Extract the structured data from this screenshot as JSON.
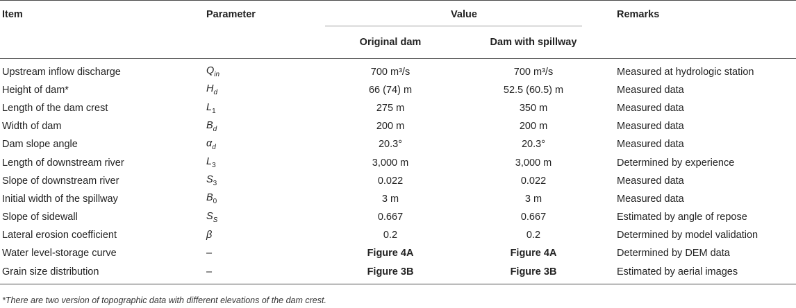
{
  "headers": {
    "item": "Item",
    "parameter": "Parameter",
    "value": "Value",
    "remarks": "Remarks",
    "original_dam": "Original dam",
    "dam_with_spillway": "Dam with spillway"
  },
  "rows": [
    {
      "item": "Upstream inflow discharge",
      "param_main": "Q",
      "param_sub": "in",
      "original": "700 m³/s",
      "spillway": "700 m³/s",
      "remarks": "Measured at hydrologic station"
    },
    {
      "item": "Height of dam*",
      "param_main": "H",
      "param_sub": "d",
      "original": "66 (74) m",
      "spillway": "52.5 (60.5) m",
      "remarks": "Measured data"
    },
    {
      "item": "Length of the dam crest",
      "param_main": "L",
      "param_sub": "1",
      "original": "275 m",
      "spillway": "350 m",
      "remarks": "Measured data"
    },
    {
      "item": "Width of dam",
      "param_main": "B",
      "param_sub": "d",
      "original": "200 m",
      "spillway": "200 m",
      "remarks": "Measured data"
    },
    {
      "item": "Dam slope angle",
      "param_main": "α",
      "param_sub": "d",
      "original": "20.3°",
      "spillway": "20.3°",
      "remarks": "Measured data"
    },
    {
      "item": "Length of downstream river",
      "param_main": "L",
      "param_sub": "3",
      "original": "3,000 m",
      "spillway": "3,000 m",
      "remarks": "Determined by experience"
    },
    {
      "item": "Slope of downstream river",
      "param_main": "S",
      "param_sub": "3",
      "original": "0.022",
      "spillway": "0.022",
      "remarks": "Measured data"
    },
    {
      "item": "Initial width of the spillway",
      "param_main": "B",
      "param_sub": "0",
      "original": "3 m",
      "spillway": "3 m",
      "remarks": "Measured data"
    },
    {
      "item": "Slope of sidewall",
      "param_main": "S",
      "param_sub": "S",
      "original": "0.667",
      "spillway": "0.667",
      "remarks": "Estimated by angle of repose"
    },
    {
      "item": "Lateral erosion coefficient",
      "param_main": "β",
      "param_sub": "",
      "original": "0.2",
      "spillway": "0.2",
      "remarks": "Determined by model validation"
    },
    {
      "item": "Water level-storage curve",
      "param_main": "–",
      "param_sub": "",
      "original": "Figure 4A",
      "spillway": "Figure 4A",
      "remarks": "Determined by DEM data"
    },
    {
      "item": "Grain size distribution",
      "param_main": "–",
      "param_sub": "",
      "original": "Figure 3B",
      "spillway": "Figure 3B",
      "remarks": "Estimated by aerial images"
    }
  ],
  "footnote": "*There are two version of topographic data with different elevations of the dam crest."
}
